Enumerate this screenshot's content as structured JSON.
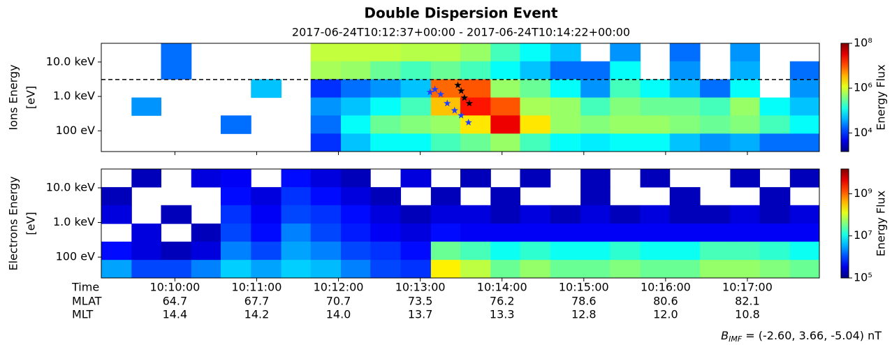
{
  "chart_data": {
    "type": "spectrogram",
    "title": "Double Dispersion Event",
    "subtitle": "2017-06-24T10:12:37+00:00 - 2017-06-24T10:14:22+00:00",
    "xlim": [
      9.1,
      17.88
    ],
    "xticks": [
      {
        "value": 10,
        "label": "10:10:00"
      },
      {
        "value": 11,
        "label": "10:11:00"
      },
      {
        "value": 12,
        "label": "10:12:00"
      },
      {
        "value": 13,
        "label": "10:13:00"
      },
      {
        "value": 14,
        "label": "10:14:00"
      },
      {
        "value": 15,
        "label": "10:15:00"
      },
      {
        "value": 16,
        "label": "10:16:00"
      },
      {
        "value": 17,
        "label": "10:17:00"
      }
    ],
    "row_labels": [
      "Time",
      "MLAT",
      "MLT"
    ],
    "mlat": [
      "64.7",
      "67.7",
      "70.7",
      "73.5",
      "76.2",
      "78.6",
      "80.6",
      "82.1"
    ],
    "mlt": [
      "14.4",
      "14.2",
      "14.0",
      "13.7",
      "13.3",
      "12.8",
      "12.0",
      "10.8"
    ],
    "imf_symbol": "B",
    "imf_subscript": "IMF",
    "imf_text": " = (-2.60, 3.66, -5.04) nT",
    "x_edges": [
      9.1,
      9.47,
      9.83,
      10.2,
      10.56,
      10.93,
      11.3,
      11.66,
      12.03,
      12.39,
      12.76,
      13.13,
      13.49,
      13.86,
      14.22,
      14.59,
      14.96,
      15.32,
      15.69,
      16.05,
      16.42,
      16.79,
      17.15,
      17.52,
      17.88
    ],
    "panels": [
      {
        "ylabel": [
          "Ions Energy",
          "[eV]"
        ],
        "ylim": [
          25,
          35000
        ],
        "log_y": true,
        "yticks": [
          {
            "value": 100,
            "label": "100 eV"
          },
          {
            "value": 1000,
            "label": "1.0 keV"
          },
          {
            "value": 10000,
            "label": "10.0 keV"
          }
        ],
        "colorbar_label": "Energy Flux",
        "clim": [
          1480,
          100000000
        ],
        "cticks": [
          {
            "value": 10000,
            "label": "10⁴"
          },
          {
            "value": 1000000,
            "label": "10⁶"
          },
          {
            "value": 100000000,
            "label": "10⁸"
          }
        ],
        "hline": 3100,
        "y_edges": [
          35000,
          10500,
          3160,
          930,
          280,
          83,
          25
        ],
        "z": [
          [
            null,
            null,
            20000.0,
            null,
            null,
            null,
            null,
            800000.0,
            800000.0,
            800000.0,
            700000.0,
            700000.0,
            500000.0,
            200000.0,
            100000.0,
            50000.0,
            null,
            30000.0,
            null,
            20000.0,
            null,
            30000.0,
            null,
            null
          ],
          [
            null,
            null,
            20000.0,
            null,
            null,
            null,
            null,
            600000.0,
            500000.0,
            300000.0,
            200000.0,
            300000.0,
            200000.0,
            100000.0,
            50000.0,
            20000.0,
            20000.0,
            100000.0,
            null,
            30000.0,
            null,
            40000.0,
            null,
            20000.0
          ],
          [
            null,
            null,
            null,
            null,
            null,
            50000.0,
            null,
            10000.0,
            20000.0,
            30000.0,
            50000.0,
            8000000.0,
            10000000.0,
            500000.0,
            300000.0,
            100000.0,
            30000.0,
            200000.0,
            100000.0,
            50000.0,
            20000.0,
            100000.0,
            null,
            30000.0
          ],
          [
            null,
            30000.0,
            null,
            null,
            null,
            null,
            null,
            30000.0,
            50000.0,
            100000.0,
            200000.0,
            3000000.0,
            20000000.0,
            10000000.0,
            600000.0,
            500000.0,
            200000.0,
            400000.0,
            300000.0,
            300000.0,
            200000.0,
            500000.0,
            100000.0,
            50000.0
          ],
          [
            null,
            null,
            null,
            null,
            20000.0,
            null,
            null,
            20000.0,
            100000.0,
            300000.0,
            400000.0,
            500000.0,
            2000000.0,
            30000000.0,
            2000000.0,
            500000.0,
            400000.0,
            500000.0,
            500000.0,
            400000.0,
            300000.0,
            400000.0,
            200000.0,
            100000.0
          ],
          [
            null,
            null,
            null,
            null,
            null,
            null,
            null,
            10000.0,
            50000.0,
            100000.0,
            100000.0,
            200000.0,
            300000.0,
            500000.0,
            200000.0,
            100000.0,
            80000.0,
            100000.0,
            100000.0,
            50000.0,
            30000.0,
            40000.0,
            20000.0,
            20000.0
          ]
        ],
        "series": [
          {
            "color": "#000000",
            "x": [
              13.46,
              13.5,
              13.54,
              13.6
            ],
            "y": [
              2120,
              1450,
              910,
              630
            ]
          },
          {
            "color": "#1f3fff",
            "x": [
              13.12,
              13.18,
              13.25,
              13.33,
              13.42,
              13.5,
              13.59
            ],
            "y": [
              1330,
              1600,
              1150,
              630,
              390,
              280,
              175
            ]
          }
        ]
      },
      {
        "ylabel": [
          "Electrons Energy",
          "[eV]"
        ],
        "ylim": [
          25,
          35000
        ],
        "log_y": true,
        "yticks": [
          {
            "value": 100,
            "label": "100 eV"
          },
          {
            "value": 1000,
            "label": "1.0 keV"
          },
          {
            "value": 10000,
            "label": "10.0 keV"
          }
        ],
        "colorbar_label": "Energy Flux",
        "clim": [
          100000,
          15000000000
        ],
        "cticks": [
          {
            "value": 100000,
            "label": "10⁵"
          },
          {
            "value": 10000000,
            "label": "10⁷"
          },
          {
            "value": 1000000000,
            "label": "10⁹"
          }
        ],
        "y_edges": [
          35000,
          10500,
          3160,
          930,
          280,
          83,
          25
        ],
        "z": [
          [
            null,
            200000.0,
            null,
            300000.0,
            400000.0,
            null,
            500000.0,
            300000.0,
            200000.0,
            null,
            300000.0,
            null,
            200000.0,
            null,
            200000.0,
            null,
            200000.0,
            null,
            200000.0,
            null,
            null,
            200000.0,
            null,
            200000.0
          ],
          [
            200000.0,
            null,
            null,
            null,
            500000.0,
            300000.0,
            800000.0,
            500000.0,
            300000.0,
            200000.0,
            null,
            200000.0,
            null,
            200000.0,
            null,
            null,
            200000.0,
            null,
            null,
            200000.0,
            null,
            null,
            200000.0,
            null
          ],
          [
            300000.0,
            null,
            200000.0,
            null,
            800000.0,
            400000.0,
            1000000.0,
            800000.0,
            500000.0,
            300000.0,
            200000.0,
            300000.0,
            300000.0,
            200000.0,
            300000.0,
            200000.0,
            300000.0,
            200000.0,
            300000.0,
            200000.0,
            200000.0,
            300000.0,
            200000.0,
            300000.0
          ],
          [
            null,
            300000.0,
            null,
            200000.0,
            1000000.0,
            500000.0,
            2000000.0,
            1000000.0,
            600000.0,
            400000.0,
            300000.0,
            500000.0,
            400000.0,
            400000.0,
            400000.0,
            400000.0,
            400000.0,
            400000.0,
            400000.0,
            400000.0,
            400000.0,
            400000.0,
            400000.0,
            400000.0
          ],
          [
            500000.0,
            300000.0,
            200000.0,
            300000.0,
            2000000.0,
            1000000.0,
            3000000.0,
            2000000.0,
            1000000.0,
            800000.0,
            500000.0,
            30000000.0,
            20000000.0,
            10000000.0,
            15000000.0,
            10000000.0,
            10000000.0,
            15000000.0,
            10000000.0,
            10000000.0,
            20000000.0,
            20000000.0,
            15000000.0,
            10000000.0
          ],
          [
            3000000.0,
            1000000.0,
            1000000.0,
            2000000.0,
            5000000.0,
            3000000.0,
            5000000.0,
            4000000.0,
            2000000.0,
            1000000.0,
            800000.0,
            200000000.0,
            80000000.0,
            30000000.0,
            50000000.0,
            30000000.0,
            30000000.0,
            40000000.0,
            30000000.0,
            30000000.0,
            50000000.0,
            50000000.0,
            40000000.0,
            30000000.0
          ]
        ]
      }
    ]
  }
}
